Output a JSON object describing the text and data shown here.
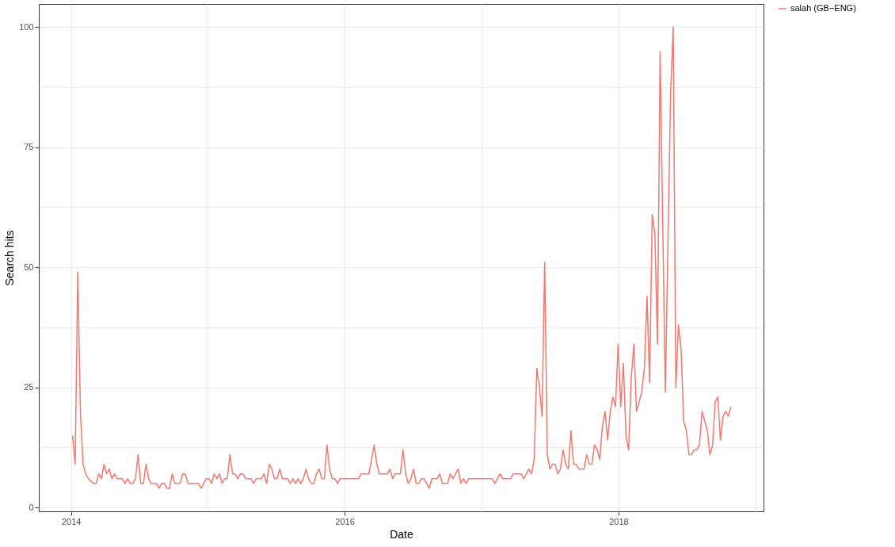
{
  "chart_data": {
    "type": "line",
    "xlabel": "Date",
    "ylabel": "Search hits",
    "x": [
      "2014-01-05",
      "2014-01-12",
      "2014-01-19",
      "2014-01-26",
      "2014-02-02",
      "2014-02-09",
      "2014-02-16",
      "2014-03-02",
      "2014-03-09",
      "2014-03-16",
      "2014-03-23",
      "2014-03-30",
      "2014-04-06",
      "2014-04-13",
      "2014-04-20",
      "2014-04-27",
      "2014-05-04",
      "2014-05-18",
      "2014-05-25",
      "2014-06-01",
      "2014-06-08",
      "2014-06-15",
      "2014-06-22",
      "2014-06-29",
      "2014-07-06",
      "2014-07-13",
      "2014-07-20",
      "2014-07-27",
      "2014-08-03",
      "2014-08-17",
      "2014-08-24",
      "2014-08-31",
      "2014-09-07",
      "2014-09-14",
      "2014-09-21",
      "2014-09-28",
      "2014-10-05",
      "2014-10-19",
      "2014-10-26",
      "2014-11-02",
      "2014-11-09",
      "2014-12-07",
      "2014-12-14",
      "2014-12-21",
      "2014-12-28",
      "2015-01-04",
      "2015-01-11",
      "2015-01-18",
      "2015-01-25",
      "2015-02-01",
      "2015-02-08",
      "2015-02-15",
      "2015-02-22",
      "2015-03-01",
      "2015-03-08",
      "2015-03-15",
      "2015-03-22",
      "2015-03-29",
      "2015-04-05",
      "2015-04-12",
      "2015-04-26",
      "2015-05-03",
      "2015-05-10",
      "2015-05-24",
      "2015-05-31",
      "2015-06-07",
      "2015-06-14",
      "2015-06-21",
      "2015-06-28",
      "2015-07-05",
      "2015-07-12",
      "2015-07-19",
      "2015-08-02",
      "2015-08-09",
      "2015-08-16",
      "2015-08-23",
      "2015-08-30",
      "2015-09-06",
      "2015-09-13",
      "2015-09-20",
      "2015-09-27",
      "2015-10-04",
      "2015-10-11",
      "2015-10-18",
      "2015-10-25",
      "2015-11-01",
      "2015-11-08",
      "2015-11-15",
      "2015-11-22",
      "2015-11-29",
      "2015-12-06",
      "2015-12-13",
      "2015-12-20",
      "2016-02-07",
      "2016-02-14",
      "2016-03-06",
      "2016-03-20",
      "2016-03-27",
      "2016-04-03",
      "2016-04-24",
      "2016-05-01",
      "2016-05-08",
      "2016-05-15",
      "2016-05-29",
      "2016-06-05",
      "2016-06-12",
      "2016-06-19",
      "2016-06-26",
      "2016-07-03",
      "2016-07-10",
      "2016-07-17",
      "2016-07-24",
      "2016-07-31",
      "2016-08-14",
      "2016-08-21",
      "2016-09-04",
      "2016-09-11",
      "2016-09-18",
      "2016-10-02",
      "2016-10-09",
      "2016-10-16",
      "2016-10-30",
      "2016-11-06",
      "2016-11-13",
      "2016-11-20",
      "2016-11-27",
      "2017-01-29",
      "2017-02-05",
      "2017-02-19",
      "2017-02-26",
      "2017-03-19",
      "2017-03-26",
      "2017-04-16",
      "2017-04-23",
      "2017-05-07",
      "2017-05-14",
      "2017-05-21",
      "2017-05-28",
      "2017-06-04",
      "2017-06-11",
      "2017-06-18",
      "2017-06-25",
      "2017-07-02",
      "2017-07-09",
      "2017-07-16",
      "2017-07-23",
      "2017-07-30",
      "2017-08-06",
      "2017-08-13",
      "2017-08-20",
      "2017-08-27",
      "2017-09-03",
      "2017-09-10",
      "2017-09-17",
      "2017-10-01",
      "2017-10-08",
      "2017-10-15",
      "2017-10-22",
      "2017-10-29",
      "2017-11-05",
      "2017-11-12",
      "2017-11-19",
      "2017-11-26",
      "2017-12-03",
      "2017-12-10",
      "2017-12-17",
      "2017-12-24",
      "2017-12-31",
      "2018-01-07",
      "2018-01-14",
      "2018-01-21",
      "2018-01-28",
      "2018-02-04",
      "2018-02-11",
      "2018-02-18",
      "2018-02-25",
      "2018-03-04",
      "2018-03-11",
      "2018-03-18",
      "2018-03-25",
      "2018-04-01",
      "2018-04-08",
      "2018-04-15",
      "2018-04-22",
      "2018-05-06",
      "2018-05-20",
      "2018-05-27",
      "2018-06-03",
      "2018-06-10",
      "2018-06-17",
      "2018-06-24",
      "2018-07-01",
      "2018-07-08",
      "2018-07-15",
      "2018-07-22",
      "2018-07-29",
      "2018-08-05",
      "2018-08-12",
      "2018-08-19",
      "2018-08-26",
      "2018-09-02",
      "2018-09-09",
      "2018-09-16",
      "2018-09-23",
      "2018-09-30",
      "2018-10-07",
      "2018-10-14",
      "2018-10-21",
      "2018-10-28"
    ],
    "series": [
      {
        "name": "salah (GB−ENG)",
        "color": "#f8766d",
        "values": [
          15,
          9,
          49,
          20,
          9,
          7,
          6,
          5,
          5,
          7,
          6,
          9,
          7,
          8,
          6,
          7,
          6,
          6,
          5,
          6,
          5,
          5,
          6,
          11,
          5,
          5,
          9,
          6,
          5,
          5,
          4,
          5,
          5,
          4,
          4,
          7,
          5,
          5,
          7,
          7,
          5,
          5,
          4,
          5,
          6,
          6,
          5,
          7,
          6,
          7,
          5,
          6,
          6,
          11,
          7,
          7,
          6,
          7,
          7,
          6,
          6,
          5,
          6,
          6,
          7,
          5,
          9,
          8,
          6,
          6,
          8,
          6,
          6,
          5,
          6,
          5,
          6,
          5,
          6,
          8,
          6,
          5,
          5,
          7,
          8,
          6,
          6,
          13,
          8,
          6,
          6,
          5,
          6,
          6,
          7,
          7,
          13,
          9,
          7,
          7,
          8,
          6,
          7,
          7,
          12,
          7,
          5,
          6,
          8,
          5,
          5,
          6,
          6,
          4,
          6,
          6,
          7,
          5,
          5,
          7,
          6,
          8,
          5,
          6,
          5,
          6,
          6,
          5,
          7,
          6,
          6,
          7,
          7,
          6,
          8,
          7,
          10,
          29,
          25,
          19,
          51,
          11,
          8,
          9,
          9,
          7,
          8,
          12,
          9,
          8,
          16,
          9,
          9,
          8,
          8,
          11,
          9,
          9,
          13,
          12,
          10,
          17,
          20,
          14,
          20,
          23,
          21,
          34,
          21,
          30,
          15,
          12,
          27,
          34,
          20,
          22,
          24,
          29,
          44,
          26,
          61,
          57,
          34,
          95,
          24,
          86,
          100,
          25,
          38,
          33,
          18,
          16,
          11,
          11,
          12,
          12,
          13,
          20,
          18,
          16,
          11,
          13,
          22,
          23,
          14,
          19,
          20,
          19,
          21
        ]
      }
    ],
    "xlim": [
      "2013-10-07",
      "2019-01-23"
    ],
    "xticks": [
      {
        "value": "2014-01-01",
        "label": "2014"
      },
      {
        "value": "2015-01-01",
        "label": null
      },
      {
        "value": "2016-01-01",
        "label": "2016"
      },
      {
        "value": "2017-01-01",
        "label": null
      },
      {
        "value": "2018-01-01",
        "label": "2018"
      },
      {
        "value": "2019-01-01",
        "label": null
      }
    ],
    "ylim": [
      -0.8,
      104.8
    ],
    "yticks": [
      0,
      {
        "value": 12.5,
        "label": null
      },
      25,
      {
        "value": 37.5,
        "label": null
      },
      50,
      {
        "value": 62.5,
        "label": null
      },
      75,
      {
        "value": 87.5,
        "label": null
      },
      100
    ],
    "grid": true,
    "legend": "right",
    "marker": "none",
    "line_style": "solid"
  }
}
